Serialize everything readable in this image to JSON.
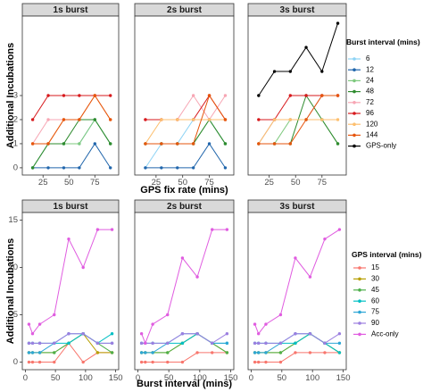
{
  "chart_data": [
    {
      "type": "line",
      "facets": [
        "1s burst",
        "2s burst",
        "3s burst"
      ],
      "x": [
        15,
        30,
        45,
        60,
        75,
        90
      ],
      "xlabel": "GPS fix rate (mins)",
      "ylabel": "Additional Incubations",
      "xticks": [
        25,
        50,
        75
      ],
      "yticks": [
        0,
        1,
        2,
        3
      ],
      "xlim": [
        5,
        98
      ],
      "ylim": [
        -0.3,
        6.3
      ],
      "grid": false,
      "legend_position": "right",
      "legend_title": "Burst interval (mins)",
      "series": [
        {
          "name": "6",
          "color": "#8dd3f5",
          "values": [
            [
              0,
              1,
              1,
              1,
              2,
              1
            ],
            [
              0,
              1,
              1,
              2,
              2,
              1
            ],
            [
              1,
              2,
              2,
              2,
              3,
              3
            ]
          ]
        },
        {
          "name": "12",
          "color": "#2166ac",
          "values": [
            [
              0,
              0,
              0,
              0,
              1,
              0
            ],
            [
              0,
              0,
              0,
              0,
              1,
              0
            ],
            [
              null,
              null,
              null,
              null,
              null,
              null
            ]
          ]
        },
        {
          "name": "24",
          "color": "#7ec97e",
          "values": [
            [
              0,
              1,
              1,
              1,
              2,
              1
            ],
            [
              1,
              1,
              1,
              1,
              2,
              1
            ],
            [
              1,
              1,
              2,
              2,
              2,
              1
            ]
          ]
        },
        {
          "name": "48",
          "color": "#2e8b2e",
          "values": [
            [
              0,
              1,
              1,
              2,
              2,
              1
            ],
            [
              1,
              1,
              1,
              1,
              2,
              1
            ],
            [
              1,
              1,
              1,
              3,
              2,
              1
            ]
          ]
        },
        {
          "name": "72",
          "color": "#f7a6b4",
          "values": [
            [
              1,
              2,
              2,
              2,
              3,
              2
            ],
            [
              2,
              2,
              2,
              3,
              2,
              3
            ],
            [
              1,
              2,
              2,
              2,
              3,
              3
            ]
          ]
        },
        {
          "name": "96",
          "color": "#d7191c",
          "values": [
            [
              2,
              3,
              3,
              3,
              3,
              3
            ],
            [
              2,
              2,
              2,
              2,
              3,
              2
            ],
            [
              2,
              2,
              3,
              3,
              3,
              3
            ]
          ]
        },
        {
          "name": "120",
          "color": "#fdbf6f",
          "values": [
            [
              1,
              1,
              2,
              2,
              3,
              2
            ],
            [
              1,
              2,
              2,
              2,
              2,
              2
            ],
            [
              1,
              2,
              2,
              2,
              2,
              2
            ]
          ]
        },
        {
          "name": "144",
          "color": "#e6550d",
          "values": [
            [
              1,
              1,
              2,
              2,
              3,
              2
            ],
            [
              1,
              1,
              1,
              1,
              3,
              2
            ],
            [
              1,
              1,
              1,
              2,
              3,
              3
            ]
          ]
        },
        {
          "name": "GPS-only",
          "color": "#000000",
          "values": [
            [
              null,
              null,
              null,
              null,
              null,
              null
            ],
            [
              null,
              null,
              null,
              null,
              null,
              null
            ],
            [
              3,
              4,
              4,
              5,
              4,
              6
            ]
          ]
        }
      ]
    },
    {
      "type": "line",
      "facets": [
        "1s burst",
        "2s burst",
        "3s burst"
      ],
      "x": [
        6,
        12,
        24,
        48,
        72,
        96,
        120,
        144
      ],
      "xlabel": "Burst interval (mins)",
      "ylabel": "Additional Incubations",
      "xticks": [
        0,
        50,
        100,
        150
      ],
      "yticks": [
        0,
        5,
        10,
        15
      ],
      "xlim": [
        -5,
        155
      ],
      "ylim": [
        -0.8,
        15.8
      ],
      "grid": false,
      "legend_position": "right",
      "legend_title": "GPS interval (mins)",
      "series": [
        {
          "name": "15",
          "color": "#f8766d",
          "values": [
            [
              0,
              0,
              0,
              0,
              2,
              0,
              1,
              1
            ],
            [
              0,
              0,
              0,
              0,
              0,
              1,
              1,
              1
            ],
            [
              0,
              0,
              0,
              0,
              1,
              1,
              1,
              1
            ]
          ]
        },
        {
          "name": "30",
          "color": "#b79f00",
          "values": [
            [
              1,
              1,
              1,
              1,
              2,
              3,
              1,
              1
            ],
            [
              1,
              1,
              1,
              1,
              2,
              3,
              2,
              1
            ],
            [
              1,
              1,
              1,
              1,
              2,
              3,
              2,
              1
            ]
          ]
        },
        {
          "name": "45",
          "color": "#4daf4a",
          "values": [
            [
              1,
              1,
              1,
              1,
              2,
              3,
              2,
              1
            ],
            [
              1,
              1,
              1,
              1,
              2,
              3,
              2,
              1
            ],
            [
              1,
              1,
              1,
              1,
              2,
              3,
              2,
              1
            ]
          ]
        },
        {
          "name": "60",
          "color": "#00bfc4",
          "values": [
            [
              2,
              2,
              2,
              2,
              2,
              3,
              2,
              3
            ],
            [
              2,
              2,
              2,
              2,
              2,
              3,
              2,
              2
            ],
            [
              2,
              2,
              2,
              2,
              2,
              3,
              2,
              1
            ]
          ]
        },
        {
          "name": "75",
          "color": "#2ca6d6",
          "values": [
            [
              1,
              1,
              1,
              2,
              3,
              3,
              2,
              2
            ],
            [
              1,
              1,
              1,
              2,
              3,
              3,
              2,
              2
            ],
            [
              1,
              1,
              1,
              2,
              3,
              3,
              2,
              2
            ]
          ]
        },
        {
          "name": "90",
          "color": "#9c7fe0",
          "values": [
            [
              2,
              2,
              2,
              2,
              3,
              3,
              2,
              2
            ],
            [
              2,
              2,
              2,
              2,
              3,
              3,
              2,
              3
            ],
            [
              2,
              2,
              2,
              2,
              3,
              3,
              2,
              3
            ]
          ]
        },
        {
          "name": "Acc-only",
          "color": "#e05ce0",
          "values": [
            [
              4,
              3,
              4,
              5,
              13,
              10,
              14,
              14
            ],
            [
              3,
              2,
              4,
              5,
              11,
              9,
              14,
              14
            ],
            [
              4,
              3,
              4,
              5,
              11,
              9,
              13,
              14
            ]
          ]
        }
      ]
    }
  ]
}
